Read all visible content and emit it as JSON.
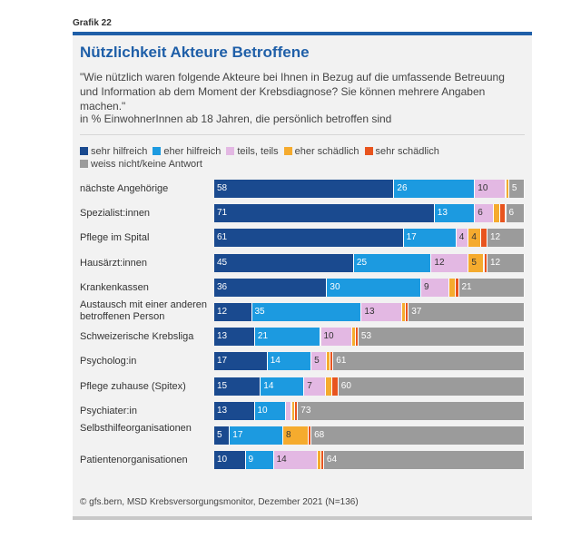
{
  "header": {
    "grafik": "Grafik 22",
    "title": "Nützlichkeit Akteure Betroffene",
    "question": "\"Wie nützlich waren folgende Akteure bei Ihnen in Bezug auf die umfassende Betreuung und Information ab dem Moment der Krebsdiagnose? Sie können mehrere Angaben machen.\"",
    "subtitle": "in % EinwohnerInnen ab 18 Jahren, die persönlich betroffen sind"
  },
  "footer": {
    "source": "© gfs.bern, MSD Krebsversorgungsmonitor, Dezember 2021 (N=136)"
  },
  "chart_data": {
    "type": "bar",
    "orientation": "horizontal",
    "stacked": true,
    "normalized_to": 100,
    "title": "Nützlichkeit Akteure Betroffene",
    "categories": [
      "nächste Angehörige",
      "Spezialist:innen",
      "Pflege im Spital",
      "Hausärzt:innen",
      "Krankenkassen",
      "Austausch mit einer anderen betroffenen Person",
      "Schweizerische Krebsliga",
      "Psycholog:in",
      "Pflege zuhause (Spitex)",
      "Psychiater:in",
      "Selbsthilfeorganisationen",
      "Patientenorganisationen"
    ],
    "series": [
      {
        "name": "sehr hilfreich",
        "color": "#1a4a8f",
        "label_color": "#ffffff",
        "values": [
          58,
          71,
          61,
          45,
          36,
          12,
          13,
          17,
          15,
          13,
          5,
          10
        ]
      },
      {
        "name": "eher hilfreich",
        "color": "#1c9ae0",
        "label_color": "#ffffff",
        "values": [
          26,
          13,
          17,
          25,
          30,
          35,
          21,
          14,
          14,
          10,
          17,
          9
        ]
      },
      {
        "name": "teils, teils",
        "color": "#e3b8e3",
        "label_color": "#333333",
        "values": [
          10,
          6,
          4,
          12,
          9,
          13,
          10,
          5,
          7,
          2,
          0,
          14
        ]
      },
      {
        "name": "eher schädlich",
        "color": "#f5ab2e",
        "label_color": "#333333",
        "values": [
          1,
          2,
          4,
          5,
          2,
          1,
          1,
          1,
          2,
          1,
          8,
          1
        ]
      },
      {
        "name": "sehr schädlich",
        "color": "#e8541e",
        "label_color": "#ffffff",
        "values": [
          0,
          2,
          2,
          1,
          1,
          1,
          1,
          1,
          2,
          1,
          1,
          1
        ]
      },
      {
        "name": "weiss nicht/keine Antwort",
        "color": "#9b9b9b",
        "label_color": "#ffffff",
        "values": [
          5,
          6,
          12,
          12,
          21,
          37,
          53,
          61,
          60,
          73,
          68,
          64
        ]
      }
    ],
    "shown_labels": [
      [
        58,
        26,
        10,
        null,
        null,
        5
      ],
      [
        71,
        13,
        6,
        null,
        null,
        6
      ],
      [
        61,
        17,
        4,
        4,
        null,
        12
      ],
      [
        45,
        25,
        12,
        5,
        null,
        12
      ],
      [
        36,
        30,
        9,
        null,
        null,
        21
      ],
      [
        12,
        35,
        13,
        null,
        null,
        37
      ],
      [
        13,
        21,
        10,
        null,
        null,
        53
      ],
      [
        17,
        14,
        5,
        null,
        null,
        61
      ],
      [
        15,
        14,
        7,
        null,
        null,
        60
      ],
      [
        13,
        10,
        null,
        null,
        null,
        73
      ],
      [
        5,
        17,
        null,
        8,
        null,
        68
      ],
      [
        10,
        9,
        14,
        null,
        null,
        64
      ]
    ],
    "legend": [
      "sehr hilfreich",
      "eher hilfreich",
      "teils, teils",
      "eher schädlich",
      "sehr schädlich",
      "weiss nicht/keine Antwort"
    ]
  }
}
